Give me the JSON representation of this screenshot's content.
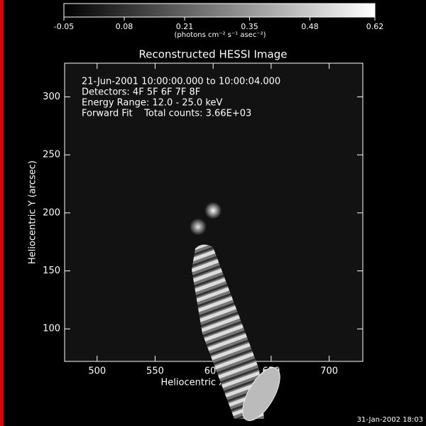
{
  "chart_data": {
    "type": "image",
    "title": "Reconstructed HESSI Image",
    "xlabel": "Heliocentric X (arcsec)",
    "ylabel": "Heliocentric Y (arcsec)",
    "xlim": [
      472,
      729
    ],
    "xticks": [
      500,
      550,
      600,
      650,
      700
    ],
    "ylim": [
      72,
      329
    ],
    "yticks": [
      100,
      150,
      200,
      250,
      300
    ],
    "colorbar": {
      "range": [
        -0.05,
        0.62
      ],
      "ticks": [
        -0.05,
        0.08,
        0.21,
        0.35,
        0.48,
        0.62
      ],
      "label": "(photons cm⁻² s⁻¹ asec⁻²)"
    },
    "annotations": [
      "21-Jun-2001 10:00:00.000 to 10:00:04.000",
      "Detectors: 4F 5F 6F 7F 8F",
      "Energy Range: 12.0 - 25.0 keV",
      "Forward Fit    Total counts: 3.66E+03"
    ],
    "sources": [
      {
        "x": 600,
        "y": 202,
        "value": 0.62
      },
      {
        "x": 587,
        "y": 188,
        "value": 0.55
      }
    ],
    "timestamp": "31-Jan-2002 18:03"
  }
}
